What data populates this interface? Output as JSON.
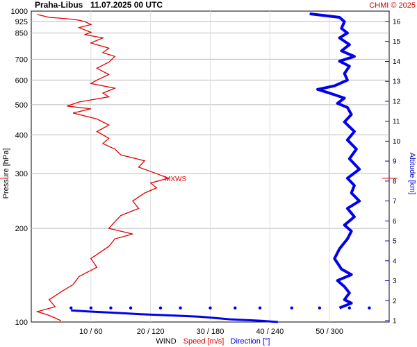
{
  "header": {
    "station": "Praha-Libus",
    "datetime": "11.07.2025 00 UTC",
    "credit": "CHMI © 2025"
  },
  "legend": {
    "wind": "WIND",
    "speed": "Speed [m/s]",
    "direction": "Direction [°]"
  },
  "colors": {
    "speed": "#e00000",
    "direction": "#0000ee",
    "grid": "#bbbbbb",
    "credit": "#d40000"
  },
  "chart_data": {
    "type": "line",
    "y_axis": {
      "label": "Pressure [hPa]",
      "scale": "log",
      "range": [
        1000,
        100
      ],
      "ticks": [
        100,
        200,
        300,
        400,
        500,
        600,
        700,
        850,
        925,
        1000
      ]
    },
    "alt_axis": {
      "label": "Altitude [km]",
      "ticks": [
        1,
        2,
        3,
        4,
        5,
        6,
        7,
        8,
        9,
        10,
        11,
        12,
        13,
        14,
        15,
        16
      ]
    },
    "x_axis": {
      "speed_range": [
        0,
        60
      ],
      "direction_range": [
        0,
        360
      ],
      "tick_labels": [
        "10 / 60",
        "20 / 120",
        "30 / 180",
        "40 / 240",
        "50 / 300"
      ]
    },
    "mxws": {
      "label": "MXWS",
      "pressure": 290
    },
    "series": [
      {
        "name": "Speed [m/s]",
        "points": [
          [
            1,
            975
          ],
          [
            3,
            955
          ],
          [
            6,
            945
          ],
          [
            8,
            935
          ],
          [
            9,
            925
          ],
          [
            10,
            905
          ],
          [
            8,
            885
          ],
          [
            10,
            855
          ],
          [
            9,
            840
          ],
          [
            12,
            820
          ],
          [
            10,
            790
          ],
          [
            13,
            760
          ],
          [
            12,
            735
          ],
          [
            14,
            715
          ],
          [
            13,
            685
          ],
          [
            11,
            655
          ],
          [
            13,
            625
          ],
          [
            11,
            600
          ],
          [
            10,
            585
          ],
          [
            14,
            565
          ],
          [
            12,
            545
          ],
          [
            13,
            530
          ],
          [
            8,
            510
          ],
          [
            6,
            495
          ],
          [
            10,
            485
          ],
          [
            7,
            470
          ],
          [
            11,
            450
          ],
          [
            13,
            430
          ],
          [
            11,
            410
          ],
          [
            13,
            390
          ],
          [
            12,
            375
          ],
          [
            14,
            360
          ],
          [
            15,
            345
          ],
          [
            19,
            330
          ],
          [
            18,
            315
          ],
          [
            21,
            300
          ],
          [
            23,
            290
          ],
          [
            20,
            280
          ],
          [
            21,
            270
          ],
          [
            19,
            260
          ],
          [
            17,
            245
          ],
          [
            18,
            232
          ],
          [
            15,
            220
          ],
          [
            14,
            210
          ],
          [
            13,
            200
          ],
          [
            17,
            192
          ],
          [
            14,
            185
          ],
          [
            13,
            175
          ],
          [
            10,
            160
          ],
          [
            11,
            150
          ],
          [
            8,
            140
          ],
          [
            7,
            132
          ],
          [
            5,
            125
          ],
          [
            3,
            118
          ],
          [
            4,
            112
          ],
          [
            1,
            108
          ],
          [
            3,
            105
          ],
          [
            5,
            101
          ]
        ]
      },
      {
        "name": "Direction [°]",
        "points": [
          [
            280,
            980
          ],
          [
            310,
            955
          ],
          [
            315,
            925
          ],
          [
            312,
            880
          ],
          [
            318,
            850
          ],
          [
            310,
            820
          ],
          [
            320,
            780
          ],
          [
            312,
            745
          ],
          [
            325,
            715
          ],
          [
            310,
            690
          ],
          [
            320,
            665
          ],
          [
            315,
            630
          ],
          [
            318,
            600
          ],
          [
            305,
            575
          ],
          [
            288,
            560
          ],
          [
            300,
            545
          ],
          [
            315,
            525
          ],
          [
            308,
            505
          ],
          [
            318,
            490
          ],
          [
            322,
            465
          ],
          [
            315,
            440
          ],
          [
            325,
            410
          ],
          [
            318,
            385
          ],
          [
            327,
            360
          ],
          [
            320,
            335
          ],
          [
            330,
            310
          ],
          [
            318,
            290
          ],
          [
            325,
            275
          ],
          [
            322,
            260
          ],
          [
            330,
            245
          ],
          [
            318,
            232
          ],
          [
            325,
            218
          ],
          [
            315,
            205
          ],
          [
            322,
            196
          ],
          [
            318,
            185
          ],
          [
            310,
            172
          ],
          [
            305,
            160
          ],
          [
            312,
            148
          ],
          [
            322,
            142
          ],
          [
            308,
            136
          ],
          [
            315,
            130
          ],
          [
            320,
            124
          ],
          [
            315,
            118
          ],
          [
            322,
            115
          ],
          [
            310,
            111
          ]
        ]
      }
    ],
    "upper_points": {
      "name": "Direction [°]",
      "points": [
        [
          40,
          111
        ],
        [
          60,
          111
        ],
        [
          80,
          111
        ],
        [
          100,
          111
        ],
        [
          130,
          111
        ],
        [
          150,
          111
        ],
        [
          180,
          111
        ],
        [
          205,
          111
        ],
        [
          230,
          111
        ],
        [
          262,
          111
        ],
        [
          290,
          111
        ],
        [
          320,
          111
        ],
        [
          340,
          111
        ]
      ],
      "upper_line": [
        [
          40,
          109
        ],
        [
          60,
          108
        ],
        [
          85,
          107
        ],
        [
          110,
          106
        ],
        [
          140,
          105
        ],
        [
          170,
          104
        ],
        [
          200,
          102
        ],
        [
          230,
          101
        ],
        [
          248,
          100
        ]
      ]
    }
  }
}
